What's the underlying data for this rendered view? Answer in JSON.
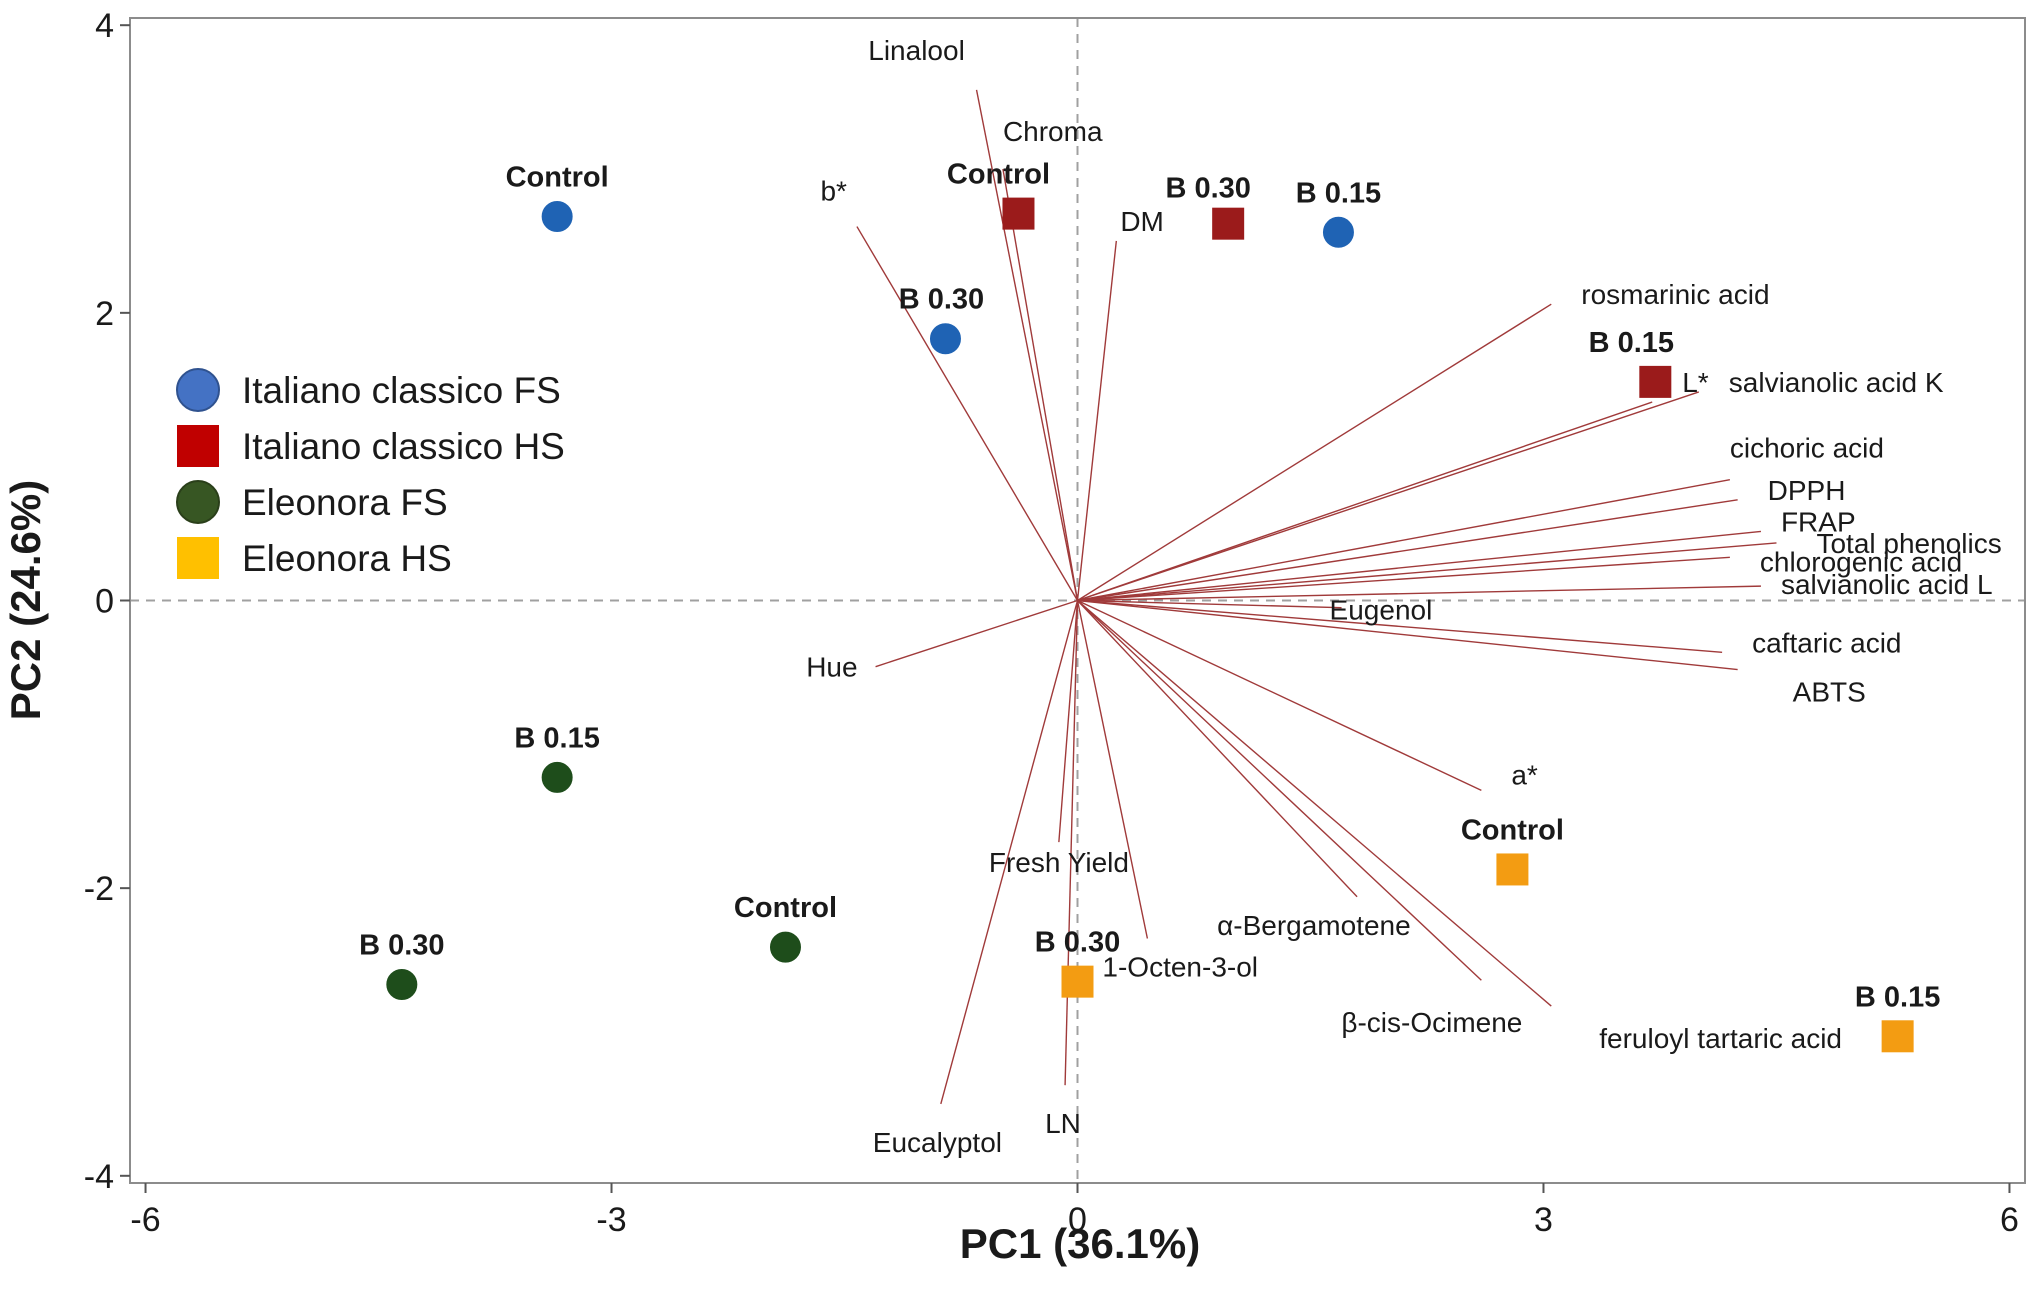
{
  "chart_data": {
    "type": "scatter",
    "subtype": "pca-biplot",
    "title": "",
    "xlabel": "PC1 (36.1%)",
    "ylabel": "PC2 (24.6%)",
    "xlim": [
      -6.1,
      6.1
    ],
    "ylim": [
      -4.05,
      4.05
    ],
    "xticks": [
      -6,
      -3,
      0,
      3,
      6
    ],
    "xtick_labels": [
      "-6",
      "-3",
      "0",
      "3",
      "6"
    ],
    "yticks": [
      -4,
      -2,
      0,
      2,
      4
    ],
    "ytick_labels": [
      "-4",
      "-2",
      "0",
      "2",
      "4"
    ],
    "reference_lines": {
      "x": 0,
      "y": 0,
      "style": "dashed"
    },
    "legend_position": "middle-left",
    "series": [
      {
        "name": "Italiano classico FS",
        "marker": "circle",
        "color": "#1f63b4",
        "points": [
          {
            "label": "Control",
            "x": -3.35,
            "y": 2.67
          },
          {
            "label": "B 0.30",
            "x": -0.85,
            "y": 1.82
          },
          {
            "label": "B 0.15",
            "x": 1.68,
            "y": 2.56
          }
        ]
      },
      {
        "name": "Italiano classico HS",
        "marker": "square",
        "color": "#9b1b1b",
        "points": [
          {
            "label": "Control",
            "x": -0.38,
            "y": 2.69
          },
          {
            "label": "B 0.30",
            "x": 0.97,
            "y": 2.62
          },
          {
            "label": "B 0.15",
            "x": 3.72,
            "y": 1.52
          }
        ]
      },
      {
        "name": "Eleonora FS",
        "marker": "circle",
        "color": "#1e4d1b",
        "points": [
          {
            "label": "B 0.15",
            "x": -3.35,
            "y": -1.23
          },
          {
            "label": "Control",
            "x": -1.88,
            "y": -2.41
          },
          {
            "label": "B 0.30",
            "x": -4.35,
            "y": -2.67
          }
        ]
      },
      {
        "name": "Eleonora HS",
        "marker": "square",
        "color": "#f39c12",
        "points": [
          {
            "label": "Control",
            "x": 2.8,
            "y": -1.87
          },
          {
            "label": "B 0.30",
            "x": 0.0,
            "y": -2.65
          },
          {
            "label": "B 0.15",
            "x": 5.28,
            "y": -3.03
          }
        ]
      }
    ],
    "loadings": [
      {
        "label": "Linalool",
        "x": -0.65,
        "y": 3.55
      },
      {
        "label": "Chroma",
        "x": -0.48,
        "y": 3.0
      },
      {
        "label": "b*",
        "x": -1.42,
        "y": 2.6
      },
      {
        "label": "DM",
        "x": 0.25,
        "y": 2.5
      },
      {
        "label": "rosmarinic acid",
        "x": 3.05,
        "y": 2.06
      },
      {
        "label": "L*",
        "x": 3.7,
        "y": 1.38
      },
      {
        "label": "salvianolic acid K",
        "x": 4.0,
        "y": 1.45
      },
      {
        "label": "cichoric acid",
        "x": 4.2,
        "y": 0.84
      },
      {
        "label": "DPPH",
        "x": 4.25,
        "y": 0.7
      },
      {
        "label": "FRAP",
        "x": 4.4,
        "y": 0.48
      },
      {
        "label": "Total phenolics",
        "x": 4.5,
        "y": 0.4
      },
      {
        "label": "chlorogenic acid",
        "x": 4.2,
        "y": 0.3
      },
      {
        "label": "salvianolic acid L",
        "x": 4.4,
        "y": 0.1
      },
      {
        "label": "Eugenol",
        "x": 1.7,
        "y": -0.05
      },
      {
        "label": "caftaric acid",
        "x": 4.15,
        "y": -0.36
      },
      {
        "label": "ABTS",
        "x": 4.25,
        "y": -0.48
      },
      {
        "label": "Hue",
        "x": -1.3,
        "y": -0.46
      },
      {
        "label": "a*",
        "x": 2.6,
        "y": -1.32
      },
      {
        "label": "α-Bergamotene",
        "x": 1.8,
        "y": -2.06
      },
      {
        "label": "β-cis-Ocimene",
        "x": 2.6,
        "y": -2.64
      },
      {
        "label": "feruloyl tartaric acid",
        "x": 3.05,
        "y": -2.82
      },
      {
        "label": "Fresh Yield",
        "x": -0.12,
        "y": -1.68
      },
      {
        "label": "1-Octen-3-ol",
        "x": 0.45,
        "y": -2.35
      },
      {
        "label": "Eucalyptol",
        "x": -0.88,
        "y": -3.5
      },
      {
        "label": "LN",
        "x": -0.08,
        "y": -3.37
      }
    ]
  }
}
